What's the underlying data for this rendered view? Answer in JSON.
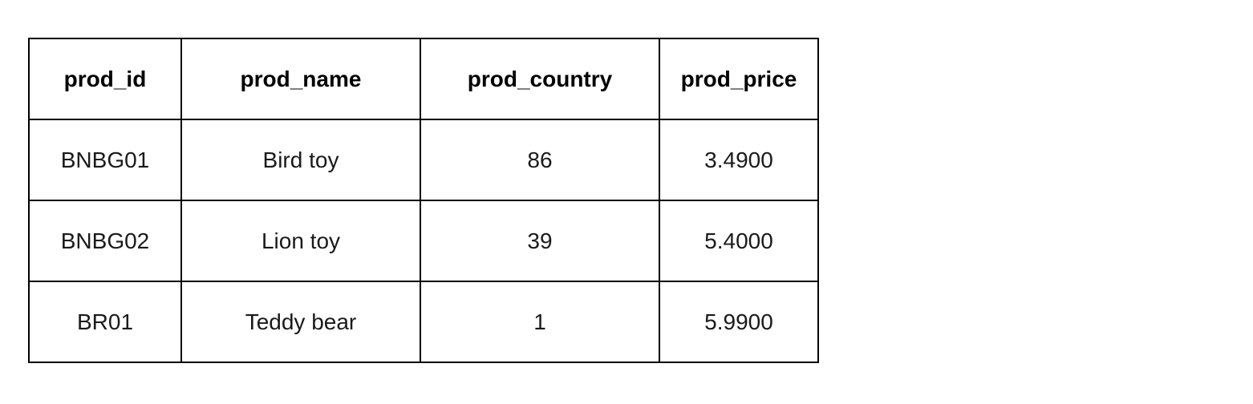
{
  "table": {
    "columns": [
      "prod_id",
      "prod_name",
      "prod_country",
      "prod_price"
    ],
    "rows": [
      [
        "BNBG01",
        "Bird toy",
        "86",
        "3.4900"
      ],
      [
        "BNBG02",
        "Lion toy",
        "39",
        "5.4000"
      ],
      [
        "BR01",
        "Teddy bear",
        "1",
        "5.9900"
      ]
    ]
  }
}
